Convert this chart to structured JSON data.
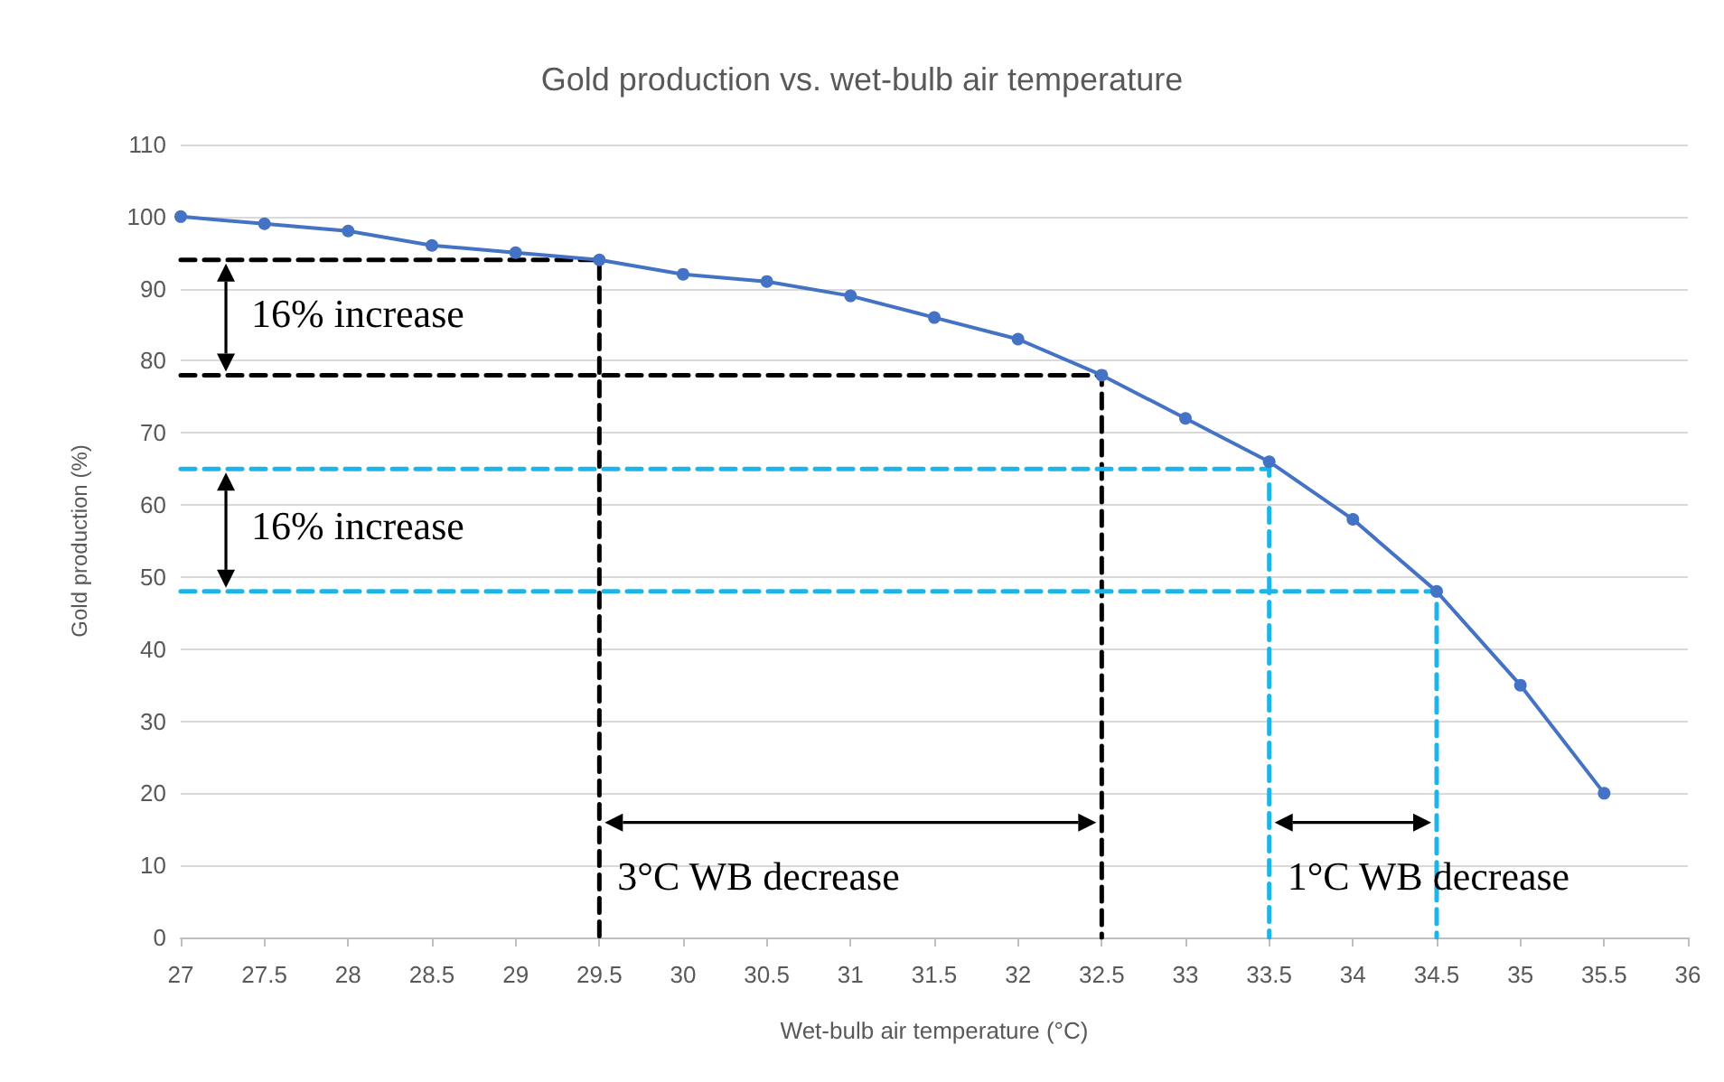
{
  "chart_data": {
    "type": "line",
    "title": "Gold production vs. wet-bulb air temperature",
    "xlabel": "Wet-bulb air temperature (°C)",
    "ylabel": "Gold production (%)",
    "series": [
      {
        "color": "#4472c4",
        "marker": "circle",
        "line_style": "solid",
        "x": [
          27,
          27.5,
          28,
          28.5,
          29,
          29.5,
          30,
          30.5,
          31,
          31.5,
          32,
          32.5,
          33,
          33.5,
          34,
          34.5,
          35,
          35.5
        ],
        "values": [
          100,
          99,
          98,
          96,
          95,
          94,
          92,
          91,
          89,
          86,
          83,
          78,
          72,
          66,
          58,
          48,
          35,
          20
        ]
      },
      {
        "color": "#000000",
        "marker": "none",
        "line_style": "dashed",
        "x": [
          27,
          29.5,
          29.5
        ],
        "values": [
          94,
          94,
          0
        ]
      },
      {
        "color": "#000000",
        "marker": "none",
        "line_style": "dashed",
        "x": [
          27,
          32.5,
          32.5
        ],
        "values": [
          78,
          78,
          0
        ]
      },
      {
        "color": "#1fb4e8",
        "marker": "none",
        "line_style": "dashed",
        "x": [
          27,
          33.5,
          33.5
        ],
        "values": [
          65,
          65,
          0
        ]
      },
      {
        "color": "#1fb4e8",
        "marker": "none",
        "line_style": "dashed",
        "x": [
          27,
          34.5,
          34.5
        ],
        "values": [
          48,
          48,
          0
        ]
      }
    ],
    "annotations": [
      "16% increase",
      "16% increase",
      "3°C WB decrease",
      "1°C WB decrease"
    ],
    "xlim": [
      27,
      36
    ],
    "xticks": [
      27,
      27.5,
      28,
      28.5,
      29,
      29.5,
      30,
      30.5,
      31,
      31.5,
      32,
      32.5,
      33,
      33.5,
      34,
      34.5,
      35,
      35.5,
      36
    ],
    "ylim": [
      0,
      110
    ],
    "yticks": [
      0,
      10,
      20,
      30,
      40,
      50,
      60,
      70,
      80,
      90,
      100,
      110
    ],
    "grid": "y"
  }
}
